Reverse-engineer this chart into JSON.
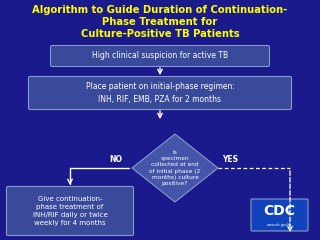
{
  "title_lines": [
    "Algorithm to Guide Duration of Continuation-",
    "Phase Treatment for",
    "Culture-Positive TB Patients"
  ],
  "title_color": "#FFFF00",
  "bg_color": "#1a1a8c",
  "box1_text": "High clinical suspicion for active TB",
  "box2_text": "Place patient on initial-phase regimen:\nINH, RIF, EMB, PZA for 2 months",
  "diamond_text": "Is\nspecimen\ncollected at end\nof initial phase (2\nmonths) culture\npositive?",
  "box3_text": "Give continuation-\nphase treatment of\nINH/RIF daily or twice\nweekly for 4 months",
  "no_label": "NO",
  "yes_label": "YES",
  "box_bg": "#3a4a9a",
  "box_border": "#8899cc",
  "diamond_bg": "#4455aa",
  "arrow_color": "#FFFFFF",
  "text_color": "#FFFFFF",
  "cdc_box_color": "#1144bb",
  "cdc_text_color": "#FFFFFF"
}
